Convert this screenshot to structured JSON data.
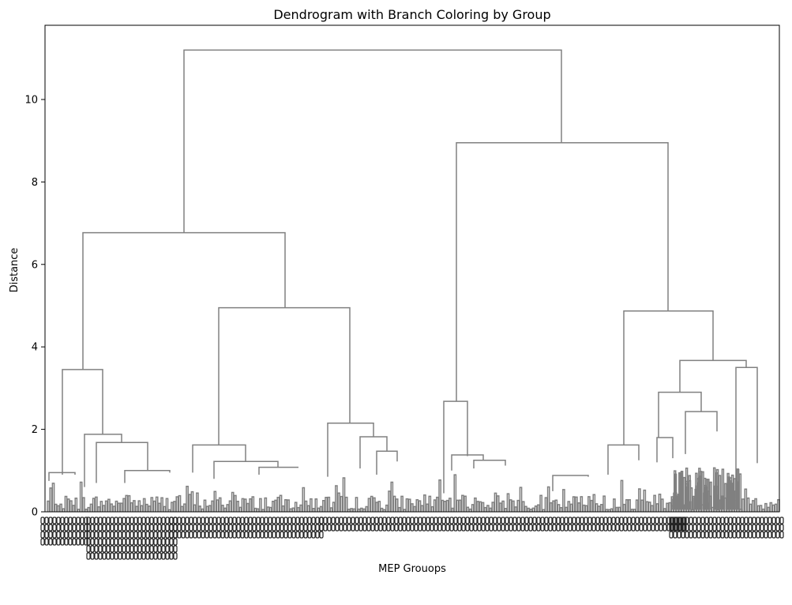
{
  "chart_data": {
    "type": "dendrogram",
    "title": "Dendrogram with Branch Coloring by Group",
    "xlabel": "MEP Grouops",
    "ylabel": "Distance",
    "ylim": [
      0,
      11.8
    ],
    "yticks": [
      0,
      2,
      4,
      6,
      8,
      10
    ],
    "grid": false,
    "link_color": "#808080",
    "merges": [
      {
        "left": [
          233,
          6.77
        ],
        "right": [
          711,
          8.95
        ],
        "height": 11.2
      },
      {
        "left": [
          105,
          3.45
        ],
        "right": [
          361,
          4.95
        ],
        "height": 6.77
      },
      {
        "left": [
          578,
          2.68
        ],
        "right": [
          846,
          4.87
        ],
        "height": 8.95
      },
      {
        "left": [
          79,
          0.9
        ],
        "right": [
          130,
          1.88
        ],
        "height": 3.45
      },
      {
        "left": [
          277,
          1.62
        ],
        "right": [
          443,
          2.15
        ],
        "height": 4.95
      },
      {
        "left": [
          562,
          0.45
        ],
        "right": [
          592,
          1.35
        ],
        "height": 2.68
      },
      {
        "left": [
          790,
          1.62
        ],
        "right": [
          903,
          3.67
        ],
        "height": 4.87
      },
      {
        "left": [
          107,
          0.6
        ],
        "right": [
          154,
          1.68
        ],
        "height": 1.88
      },
      {
        "left": [
          122,
          0.7
        ],
        "right": [
          187,
          1.0
        ],
        "height": 1.68
      },
      {
        "left": [
          244,
          0.95
        ],
        "right": [
          311,
          1.22
        ],
        "height": 1.62
      },
      {
        "left": [
          271,
          0.8
        ],
        "right": [
          352,
          1.08
        ],
        "height": 1.22
      },
      {
        "left": [
          415,
          0.85
        ],
        "right": [
          473,
          1.82
        ],
        "height": 2.15
      },
      {
        "left": [
          456,
          1.05
        ],
        "right": [
          490,
          1.47
        ],
        "height": 1.82
      },
      {
        "left": [
          477,
          0.9
        ],
        "right": [
          503,
          1.22
        ],
        "height": 1.47
      },
      {
        "left": [
          770,
          0.9
        ],
        "right": [
          809,
          1.25
        ],
        "height": 1.62
      },
      {
        "left": [
          861,
          2.9
        ],
        "right": [
          945,
          3.5
        ],
        "height": 3.67
      },
      {
        "left": [
          834,
          1.8
        ],
        "right": [
          888,
          2.43
        ],
        "height": 2.9
      },
      {
        "left": [
          868,
          1.4
        ],
        "right": [
          908,
          1.95
        ],
        "height": 2.43
      },
      {
        "left": [
          932,
          0.35
        ],
        "right": [
          959,
          1.18
        ],
        "height": 3.5
      },
      {
        "left": [
          572,
          1.0
        ],
        "right": [
          612,
          1.25
        ],
        "height": 1.38
      },
      {
        "left": [
          600,
          1.05
        ],
        "right": [
          640,
          1.12
        ],
        "height": 1.25
      },
      {
        "left": [
          62,
          0.75
        ],
        "right": [
          95,
          0.9
        ],
        "height": 0.95
      },
      {
        "left": [
          158,
          0.7
        ],
        "right": [
          215,
          0.95
        ],
        "height": 1.0
      },
      {
        "left": [
          328,
          0.9
        ],
        "right": [
          378,
          1.08
        ],
        "height": 1.08
      },
      {
        "left": [
          700,
          0.5
        ],
        "right": [
          745,
          0.85
        ],
        "height": 0.88
      },
      {
        "left": [
          832,
          1.2
        ],
        "right": [
          852,
          1.3
        ],
        "height": 1.8
      }
    ]
  }
}
